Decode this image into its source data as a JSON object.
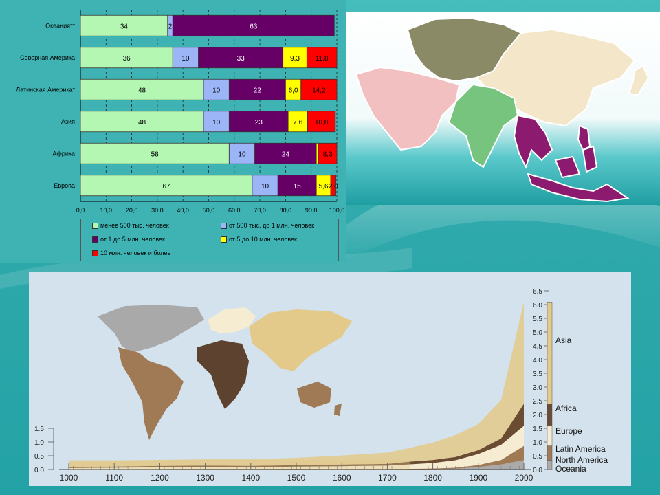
{
  "colors": {
    "light_green": "#b3f7b3",
    "light_blue": "#9bb5f7",
    "purple": "#660066",
    "yellow": "#ffff00",
    "red": "#ff0000",
    "asia": "#e3c98a",
    "africa": "#6b4c33",
    "europe": "#f6ecd2",
    "latin_america": "#a07a55",
    "north_america_oceania": "#aaaaaa"
  },
  "chart_data": [
    {
      "type": "bar",
      "orientation": "horizontal",
      "stacked": true,
      "categories": [
        "Океания**",
        "Северная Америка",
        "Латинская Америка*",
        "Азия",
        "Африка",
        "Европа"
      ],
      "series": [
        {
          "name": "менее 500 тыс. человек",
          "values": [
            34,
            36,
            48,
            48,
            58,
            67
          ],
          "labels": [
            "34",
            "36",
            "48",
            "48",
            "58",
            "67"
          ]
        },
        {
          "name": "от 500 тыс. до 1 млн. человек",
          "values": [
            2,
            10,
            10,
            10,
            10,
            10
          ],
          "labels": [
            "2",
            "10",
            "10",
            "10",
            "10",
            "10"
          ]
        },
        {
          "name": "от 1 до 5 млн. человек",
          "values": [
            63,
            33,
            22,
            23,
            24,
            15
          ],
          "labels": [
            "63",
            "33",
            "22",
            "23",
            "24",
            "15"
          ]
        },
        {
          "name": "от 5 до 10 млн. человек",
          "values": [
            0,
            9.3,
            6.0,
            7.6,
            0.8,
            5.6
          ],
          "labels": [
            "",
            "9,3",
            "6,0",
            "7,6",
            "",
            "5,6"
          ]
        },
        {
          "name": "10 млн. человек и более",
          "values": [
            0,
            11.8,
            14.2,
            10.8,
            8.3,
            2.0
          ],
          "labels": [
            "",
            "11,8",
            "14,2",
            "10,8",
            "8,3",
            "2,0"
          ]
        }
      ],
      "x_ticks": [
        "0,0",
        "10,0",
        "20,0",
        "30,0",
        "40,0",
        "50,0",
        "60,0",
        "70,0",
        "80,0",
        "90,0",
        "100,0"
      ],
      "xlim": [
        0,
        100
      ],
      "grid": "vertical-dashed",
      "legend_position": "bottom"
    },
    {
      "type": "area",
      "stacked": true,
      "x": [
        1000,
        1100,
        1200,
        1300,
        1400,
        1500,
        1600,
        1700,
        1750,
        1800,
        1850,
        1900,
        1950,
        2000
      ],
      "series": [
        {
          "name": "North America\nOceania",
          "values": [
            0.004,
            0.005,
            0.006,
            0.006,
            0.006,
            0.007,
            0.008,
            0.01,
            0.01,
            0.013,
            0.028,
            0.09,
            0.18,
            0.34
          ]
        },
        {
          "name": "Latin America",
          "values": [
            0.01,
            0.012,
            0.014,
            0.015,
            0.016,
            0.018,
            0.012,
            0.012,
            0.016,
            0.024,
            0.038,
            0.074,
            0.167,
            0.52
          ]
        },
        {
          "name": "Europe",
          "values": [
            0.04,
            0.05,
            0.06,
            0.07,
            0.06,
            0.08,
            0.1,
            0.12,
            0.16,
            0.2,
            0.27,
            0.4,
            0.55,
            0.73
          ]
        },
        {
          "name": "Africa",
          "values": [
            0.04,
            0.04,
            0.05,
            0.05,
            0.05,
            0.05,
            0.06,
            0.06,
            0.1,
            0.11,
            0.12,
            0.14,
            0.23,
            0.8
          ]
        },
        {
          "name": "Asia",
          "values": [
            0.2,
            0.21,
            0.22,
            0.23,
            0.24,
            0.27,
            0.33,
            0.41,
            0.5,
            0.63,
            0.8,
            0.95,
            1.4,
            3.7
          ]
        }
      ],
      "x_ticks": [
        "1000",
        "1100",
        "1200",
        "1300",
        "1400",
        "1500",
        "1600",
        "1700",
        "1800",
        "1900",
        "2000"
      ],
      "y_ticks_left": [
        "0.0",
        "0.5",
        "1.0",
        "1.5"
      ],
      "y_ticks_right": [
        "0.0",
        "0.5",
        "1.0",
        "1.5",
        "2.0",
        "2.5",
        "3.0",
        "3.5",
        "4.0",
        "4.5",
        "5.0",
        "5.5",
        "6.0",
        "6.5"
      ],
      "ylim": [
        0,
        6.5
      ]
    }
  ]
}
